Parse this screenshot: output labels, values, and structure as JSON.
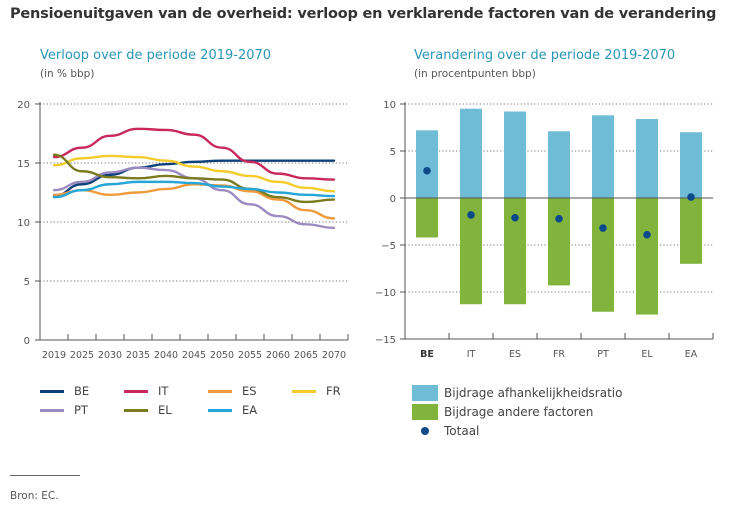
{
  "title": "Pensioenuitgaven van de overheid: verloop en verklarende factoren van de verandering",
  "source": "Bron: EC.",
  "chart_data": [
    {
      "type": "line",
      "title": "Verloop over de periode 2019-2070",
      "subtitle": "(in % bbp)",
      "xlabel": "",
      "ylabel": "",
      "x": [
        "2019",
        "2025",
        "2030",
        "2035",
        "2040",
        "2045",
        "2050",
        "2055",
        "2060",
        "2065",
        "2070"
      ],
      "ylim": [
        0,
        20
      ],
      "yticks": [
        0,
        5,
        10,
        15,
        20
      ],
      "grid": "horizontal-dotted",
      "legend_position": "bottom",
      "series": [
        {
          "name": "BE",
          "color": "#0d3f7a",
          "values": [
            12.2,
            13.2,
            14.0,
            14.6,
            14.9,
            15.1,
            15.2,
            15.2,
            15.2,
            15.2,
            15.2
          ]
        },
        {
          "name": "IT",
          "color": "#c8295a",
          "values": [
            15.5,
            16.3,
            17.3,
            17.9,
            17.8,
            17.4,
            16.3,
            15.1,
            14.1,
            13.7,
            13.6
          ]
        },
        {
          "name": "ES",
          "color": "#ef9a3d",
          "values": [
            12.3,
            12.7,
            12.3,
            12.5,
            12.8,
            13.2,
            13.1,
            12.6,
            11.9,
            11.0,
            10.3
          ]
        },
        {
          "name": "FR",
          "color": "#f3cc2b",
          "values": [
            14.8,
            15.4,
            15.6,
            15.5,
            15.2,
            14.7,
            14.3,
            13.9,
            13.4,
            12.9,
            12.6
          ]
        },
        {
          "name": "PT",
          "color": "#9b8bc0",
          "values": [
            12.7,
            13.4,
            14.2,
            14.6,
            14.4,
            13.7,
            12.7,
            11.5,
            10.5,
            9.8,
            9.5
          ]
        },
        {
          "name": "EL",
          "color": "#7a7a1e",
          "values": [
            15.7,
            14.3,
            13.8,
            13.7,
            13.9,
            13.7,
            13.6,
            12.8,
            12.1,
            11.7,
            11.9
          ]
        },
        {
          "name": "EA",
          "color": "#25a6d6",
          "values": [
            12.1,
            12.7,
            13.2,
            13.4,
            13.4,
            13.3,
            13.0,
            12.8,
            12.5,
            12.3,
            12.2
          ]
        }
      ]
    },
    {
      "type": "bar",
      "title": "Verandering over de periode 2019-2070",
      "subtitle": "(in procentpunten bbp)",
      "xlabel": "",
      "ylabel": "",
      "categories": [
        "BE",
        "IT",
        "ES",
        "FR",
        "PT",
        "EL",
        "EA"
      ],
      "highlight_category": "BE",
      "ylim": [
        -15,
        10
      ],
      "yticks": [
        -15,
        -10,
        -5,
        0,
        5,
        10
      ],
      "grid": "horizontal-dotted",
      "legend_position": "bottom",
      "stacked": true,
      "series": [
        {
          "name": "Bijdrage afhankelijkheidsratio",
          "color": "#6fbcd6",
          "kind": "bar",
          "values": [
            7.2,
            9.5,
            9.2,
            7.1,
            8.8,
            8.4,
            7.0
          ]
        },
        {
          "name": "Bijdrage andere factoren",
          "color": "#82b33c",
          "kind": "bar",
          "values": [
            -4.2,
            -11.3,
            -11.3,
            -9.3,
            -12.1,
            -12.4,
            -7.0
          ]
        },
        {
          "name": "Totaal",
          "color": "#0d4a8a",
          "kind": "dot",
          "values": [
            2.9,
            -1.8,
            -2.1,
            -2.2,
            -3.2,
            -3.9,
            0.1
          ]
        }
      ]
    }
  ]
}
